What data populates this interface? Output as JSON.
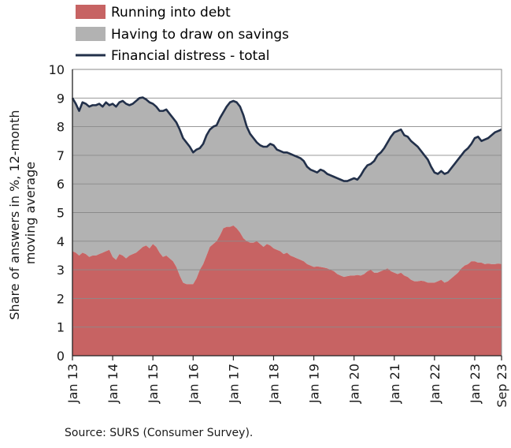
{
  "chart_data": {
    "type": "area",
    "ylabel": "Share of answers in %, 12-month moving average",
    "xlabel": "",
    "ylim": [
      0,
      10
    ],
    "yticks": [
      0,
      1,
      2,
      3,
      4,
      5,
      6,
      7,
      8,
      9,
      10
    ],
    "xticks": [
      "Jan 13",
      "Jan 14",
      "Jan 15",
      "Jan 16",
      "Jan 17",
      "Jan 18",
      "Jan 19",
      "Jan 20",
      "Jan 21",
      "Jan 22",
      "Jan 23",
      "Sep 23"
    ],
    "grid": true,
    "legend_position": "top-left",
    "colors": {
      "debt": "#c76363",
      "savings": "#b2b2b2",
      "total": "#22304a",
      "grid": "#8a8a8a",
      "axis": "#222222"
    },
    "series": [
      {
        "name": "Running into debt",
        "kind": "area",
        "values": [
          3.65,
          3.6,
          3.5,
          3.6,
          3.55,
          3.45,
          3.5,
          3.5,
          3.55,
          3.6,
          3.65,
          3.7,
          3.45,
          3.35,
          3.55,
          3.5,
          3.4,
          3.5,
          3.55,
          3.6,
          3.7,
          3.8,
          3.85,
          3.75,
          3.9,
          3.8,
          3.6,
          3.45,
          3.5,
          3.4,
          3.3,
          3.1,
          2.8,
          2.55,
          2.5,
          2.5,
          2.5,
          2.7,
          3.0,
          3.2,
          3.5,
          3.8,
          3.9,
          4.0,
          4.2,
          4.45,
          4.5,
          4.5,
          4.55,
          4.45,
          4.3,
          4.1,
          4.0,
          3.95,
          3.95,
          4.0,
          3.9,
          3.8,
          3.9,
          3.85,
          3.75,
          3.7,
          3.65,
          3.55,
          3.6,
          3.5,
          3.45,
          3.4,
          3.35,
          3.3,
          3.2,
          3.15,
          3.1,
          3.12,
          3.1,
          3.08,
          3.05,
          3.0,
          2.95,
          2.85,
          2.8,
          2.75,
          2.78,
          2.8,
          2.8,
          2.82,
          2.8,
          2.85,
          2.95,
          3.0,
          2.9,
          2.9,
          2.95,
          3.0,
          3.05,
          2.95,
          2.9,
          2.85,
          2.9,
          2.8,
          2.75,
          2.65,
          2.6,
          2.6,
          2.62,
          2.6,
          2.55,
          2.55,
          2.55,
          2.6,
          2.65,
          2.55,
          2.6,
          2.7,
          2.8,
          2.9,
          3.05,
          3.15,
          3.2,
          3.3,
          3.3,
          3.25,
          3.25,
          3.2,
          3.22,
          3.2,
          3.2,
          3.22,
          3.2
        ]
      },
      {
        "name": "Having to draw on savings",
        "kind": "area",
        "stacked_on": "Running into debt"
      },
      {
        "name": "Financial distress - total",
        "kind": "line",
        "values": [
          9.0,
          8.8,
          8.55,
          8.85,
          8.8,
          8.7,
          8.75,
          8.75,
          8.8,
          8.7,
          8.85,
          8.75,
          8.8,
          8.7,
          8.85,
          8.9,
          8.8,
          8.75,
          8.8,
          8.9,
          9.0,
          9.02,
          8.95,
          8.85,
          8.8,
          8.7,
          8.55,
          8.55,
          8.6,
          8.45,
          8.3,
          8.15,
          7.9,
          7.6,
          7.45,
          7.3,
          7.1,
          7.2,
          7.25,
          7.4,
          7.7,
          7.9,
          8.0,
          8.05,
          8.3,
          8.5,
          8.7,
          8.85,
          8.9,
          8.85,
          8.7,
          8.4,
          8.0,
          7.75,
          7.6,
          7.45,
          7.35,
          7.3,
          7.3,
          7.4,
          7.35,
          7.2,
          7.15,
          7.1,
          7.1,
          7.05,
          7.0,
          6.95,
          6.9,
          6.8,
          6.6,
          6.5,
          6.45,
          6.4,
          6.5,
          6.45,
          6.35,
          6.3,
          6.25,
          6.2,
          6.15,
          6.1,
          6.1,
          6.15,
          6.2,
          6.15,
          6.3,
          6.5,
          6.65,
          6.7,
          6.8,
          7.0,
          7.1,
          7.25,
          7.45,
          7.65,
          7.8,
          7.85,
          7.9,
          7.7,
          7.65,
          7.5,
          7.4,
          7.3,
          7.15,
          7.0,
          6.85,
          6.6,
          6.4,
          6.35,
          6.45,
          6.35,
          6.4,
          6.55,
          6.7,
          6.85,
          7.0,
          7.15,
          7.25,
          7.4,
          7.6,
          7.65,
          7.5,
          7.55,
          7.6,
          7.7,
          7.8,
          7.85,
          7.9
        ]
      }
    ]
  },
  "source": "Source: SURS (Consumer Survey)."
}
